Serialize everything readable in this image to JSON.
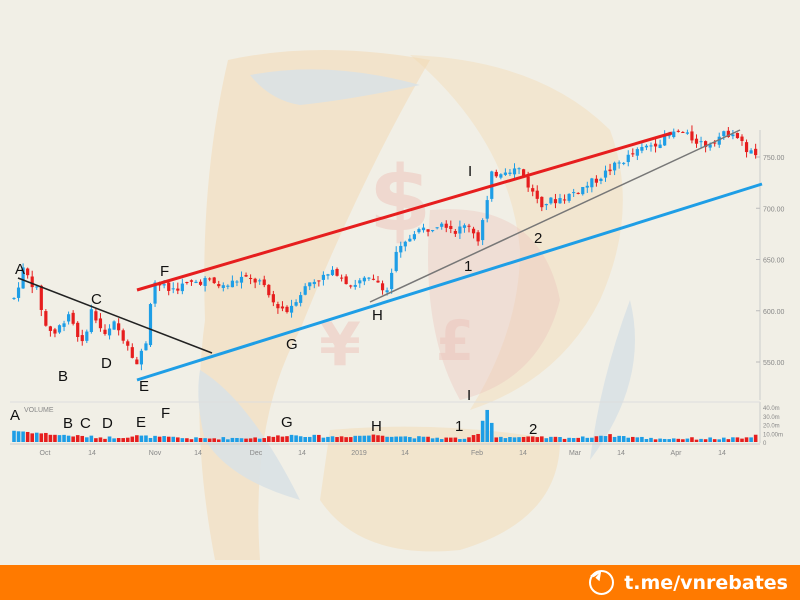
{
  "chart_data": {
    "type": "candlestick",
    "price_axis": {
      "ticks": [
        "750.00",
        "700.00",
        "650.00",
        "600.00",
        "550.00"
      ],
      "range": [
        525,
        775
      ]
    },
    "volume_axis": {
      "title": "VOLUME",
      "ticks": [
        "40.0m",
        "30.0m",
        "20.0m",
        "10.00m",
        "0"
      ],
      "range": [
        0,
        40
      ]
    },
    "date_labels": [
      "Oct",
      "14",
      "Nov",
      "14",
      "Dec",
      "14",
      "2019",
      "14",
      "Feb",
      "14",
      "Mar",
      "14",
      "Apr",
      "14"
    ],
    "colors": {
      "up": "#1e9ee6",
      "down": "#e61e1e",
      "upper_trendline": "#e61e1e",
      "lower_trendline": "#1e9ee6",
      "inner_trendline": "#777777",
      "downtrend": "#222222"
    },
    "price_labels": [
      "A",
      "B",
      "C",
      "D",
      "E",
      "F",
      "G",
      "H",
      "I",
      "1",
      "2"
    ],
    "volume_labels": [
      "A",
      "B",
      "C",
      "D",
      "E",
      "F",
      "G",
      "H",
      "1",
      "I",
      "2"
    ],
    "price_anchors": [
      {
        "x": 0,
        "y": 612
      },
      {
        "x": 2,
        "y": 640
      },
      {
        "x": 5,
        "y": 620
      },
      {
        "x": 7,
        "y": 585
      },
      {
        "x": 9,
        "y": 578
      },
      {
        "x": 12,
        "y": 598
      },
      {
        "x": 15,
        "y": 567
      },
      {
        "x": 17,
        "y": 600
      },
      {
        "x": 20,
        "y": 575
      },
      {
        "x": 22,
        "y": 587
      },
      {
        "x": 25,
        "y": 568
      },
      {
        "x": 27,
        "y": 548
      },
      {
        "x": 29,
        "y": 570
      },
      {
        "x": 30,
        "y": 610
      },
      {
        "x": 31,
        "y": 628
      },
      {
        "x": 34,
        "y": 620
      },
      {
        "x": 38,
        "y": 626
      },
      {
        "x": 42,
        "y": 630
      },
      {
        "x": 46,
        "y": 623
      },
      {
        "x": 50,
        "y": 632
      },
      {
        "x": 54,
        "y": 628
      },
      {
        "x": 57,
        "y": 608
      },
      {
        "x": 60,
        "y": 600
      },
      {
        "x": 62,
        "y": 612
      },
      {
        "x": 65,
        "y": 628
      },
      {
        "x": 68,
        "y": 633
      },
      {
        "x": 71,
        "y": 638
      },
      {
        "x": 74,
        "y": 625
      },
      {
        "x": 77,
        "y": 630
      },
      {
        "x": 80,
        "y": 628
      },
      {
        "x": 82,
        "y": 620
      },
      {
        "x": 84,
        "y": 655
      },
      {
        "x": 86,
        "y": 665
      },
      {
        "x": 88,
        "y": 678
      },
      {
        "x": 91,
        "y": 680
      },
      {
        "x": 94,
        "y": 688
      },
      {
        "x": 97,
        "y": 678
      },
      {
        "x": 100,
        "y": 684
      },
      {
        "x": 102,
        "y": 670
      },
      {
        "x": 104,
        "y": 706
      },
      {
        "x": 105,
        "y": 732
      },
      {
        "x": 108,
        "y": 738
      },
      {
        "x": 111,
        "y": 738
      },
      {
        "x": 114,
        "y": 715
      },
      {
        "x": 116,
        "y": 705
      },
      {
        "x": 119,
        "y": 708
      },
      {
        "x": 122,
        "y": 713
      },
      {
        "x": 125,
        "y": 720
      },
      {
        "x": 128,
        "y": 728
      },
      {
        "x": 131,
        "y": 738
      },
      {
        "x": 135,
        "y": 750
      },
      {
        "x": 139,
        "y": 760
      },
      {
        "x": 143,
        "y": 768
      },
      {
        "x": 146,
        "y": 775
      },
      {
        "x": 149,
        "y": 768
      },
      {
        "x": 152,
        "y": 762
      },
      {
        "x": 155,
        "y": 770
      },
      {
        "x": 158,
        "y": 775
      },
      {
        "x": 161,
        "y": 757
      },
      {
        "x": 163,
        "y": 752
      }
    ],
    "volume_anchors": [
      {
        "x": 0,
        "y": 13
      },
      {
        "x": 10,
        "y": 8
      },
      {
        "x": 20,
        "y": 5
      },
      {
        "x": 25,
        "y": 6
      },
      {
        "x": 27,
        "y": 7
      },
      {
        "x": 30,
        "y": 6
      },
      {
        "x": 40,
        "y": 4
      },
      {
        "x": 55,
        "y": 5
      },
      {
        "x": 60,
        "y": 8
      },
      {
        "x": 70,
        "y": 6
      },
      {
        "x": 80,
        "y": 8
      },
      {
        "x": 90,
        "y": 5
      },
      {
        "x": 100,
        "y": 4
      },
      {
        "x": 102,
        "y": 9
      },
      {
        "x": 104,
        "y": 38
      },
      {
        "x": 106,
        "y": 6
      },
      {
        "x": 115,
        "y": 5
      },
      {
        "x": 125,
        "y": 5
      },
      {
        "x": 130,
        "y": 8
      },
      {
        "x": 140,
        "y": 4
      },
      {
        "x": 150,
        "y": 4
      },
      {
        "x": 160,
        "y": 4
      },
      {
        "x": 163,
        "y": 7
      }
    ]
  },
  "watermark": {
    "colors": [
      "#f4c98c",
      "#c8d7e4",
      "#e9a9a0"
    ],
    "symbols": [
      "$",
      "¥",
      "£"
    ]
  },
  "footer": {
    "link": "t.me/vnrebates",
    "icon": "telegram-icon",
    "background": "#ff7a00"
  }
}
